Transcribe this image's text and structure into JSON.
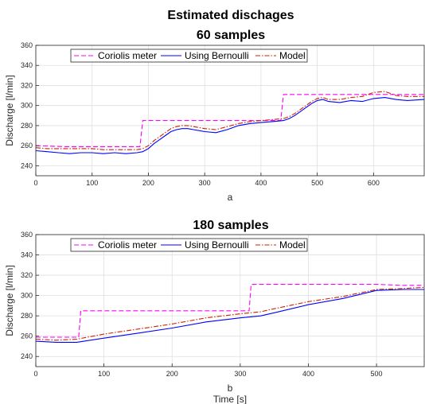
{
  "chart_data": [
    {
      "type": "line",
      "title": "Estimated dischages",
      "subtitle": "60 samples",
      "xlabel": "a",
      "ylabel": "Discharge [l/min]",
      "xlim": [
        0,
        690
      ],
      "ylim": [
        230,
        360
      ],
      "xticks": [
        0,
        100,
        200,
        300,
        400,
        500,
        600
      ],
      "yticks": [
        240,
        260,
        280,
        300,
        320,
        340,
        360
      ],
      "grid": true,
      "legend_position": "top-left",
      "series": [
        {
          "name": "Coriolis meter",
          "color": "#ff00ff",
          "style": "dashed",
          "x": [
            0,
            50,
            100,
            150,
            180,
            185,
            190,
            250,
            300,
            350,
            400,
            430,
            435,
            440,
            500,
            550,
            600,
            650,
            690
          ],
          "y": [
            260,
            259,
            259,
            259,
            259,
            259,
            285,
            285,
            285,
            285,
            285,
            285,
            285,
            311,
            311,
            311,
            311,
            311,
            311
          ]
        },
        {
          "name": "Using Bernoulli",
          "color": "#0000ff",
          "style": "solid",
          "x": [
            0,
            20,
            40,
            60,
            80,
            100,
            120,
            140,
            160,
            180,
            190,
            200,
            210,
            220,
            230,
            240,
            250,
            260,
            270,
            280,
            300,
            320,
            340,
            360,
            380,
            400,
            420,
            440,
            450,
            460,
            470,
            480,
            490,
            500,
            510,
            520,
            540,
            560,
            580,
            600,
            620,
            640,
            660,
            690
          ],
          "y": [
            255,
            254,
            253,
            252,
            253,
            253,
            252,
            253,
            252,
            253,
            254,
            257,
            262,
            266,
            270,
            274,
            276,
            277,
            277,
            276,
            274,
            273,
            276,
            280,
            282,
            283,
            284,
            285,
            287,
            290,
            294,
            298,
            302,
            305,
            306,
            304,
            303,
            305,
            304,
            307,
            308,
            306,
            305,
            306
          ]
        },
        {
          "name": "Model",
          "color": "#cc2200",
          "style": "dashdot",
          "x": [
            0,
            20,
            40,
            60,
            80,
            100,
            120,
            140,
            160,
            180,
            190,
            200,
            210,
            220,
            230,
            240,
            250,
            260,
            270,
            280,
            300,
            320,
            340,
            360,
            380,
            400,
            420,
            440,
            450,
            460,
            470,
            480,
            490,
            500,
            510,
            520,
            540,
            560,
            580,
            600,
            620,
            640,
            660,
            690
          ],
          "y": [
            258,
            257,
            257,
            257,
            257,
            257,
            256,
            256,
            256,
            256,
            257,
            260,
            265,
            269,
            273,
            277,
            279,
            280,
            280,
            279,
            277,
            276,
            279,
            282,
            284,
            285,
            286,
            287,
            289,
            292,
            296,
            300,
            304,
            307,
            308,
            306,
            306,
            308,
            309,
            313,
            314,
            310,
            309,
            309
          ]
        }
      ]
    },
    {
      "type": "line",
      "title": "180 samples",
      "xlabel": "b",
      "xlabel2": "Time [s]",
      "ylabel": "Discharge [l/min]",
      "xlim": [
        0,
        570
      ],
      "ylim": [
        230,
        360
      ],
      "xticks": [
        0,
        100,
        200,
        300,
        400,
        500
      ],
      "yticks": [
        240,
        260,
        280,
        300,
        320,
        340,
        360
      ],
      "grid": true,
      "legend_position": "top-left",
      "series": [
        {
          "name": "Coriolis meter",
          "color": "#ff00ff",
          "style": "dashed",
          "x": [
            0,
            40,
            60,
            63,
            66,
            100,
            150,
            200,
            250,
            300,
            310,
            313,
            316,
            350,
            400,
            450,
            500,
            540,
            570
          ],
          "y": [
            259,
            259,
            259,
            259,
            285,
            285,
            285,
            285,
            285,
            285,
            285,
            285,
            311,
            311,
            311,
            311,
            311,
            310,
            310
          ]
        },
        {
          "name": "Using Bernoulli",
          "color": "#0000ff",
          "style": "solid",
          "x": [
            0,
            30,
            60,
            100,
            150,
            200,
            250,
            300,
            330,
            350,
            400,
            450,
            500,
            540,
            570
          ],
          "y": [
            255,
            254,
            254,
            258,
            263,
            268,
            274,
            278,
            280,
            283,
            291,
            297,
            305,
            306,
            306
          ]
        },
        {
          "name": "Model",
          "color": "#cc2200",
          "style": "dashdot",
          "x": [
            0,
            30,
            60,
            100,
            150,
            200,
            250,
            300,
            330,
            350,
            400,
            450,
            500,
            540,
            570
          ],
          "y": [
            257,
            256,
            257,
            262,
            267,
            272,
            278,
            282,
            284,
            287,
            294,
            299,
            306,
            307,
            308
          ]
        }
      ]
    }
  ]
}
